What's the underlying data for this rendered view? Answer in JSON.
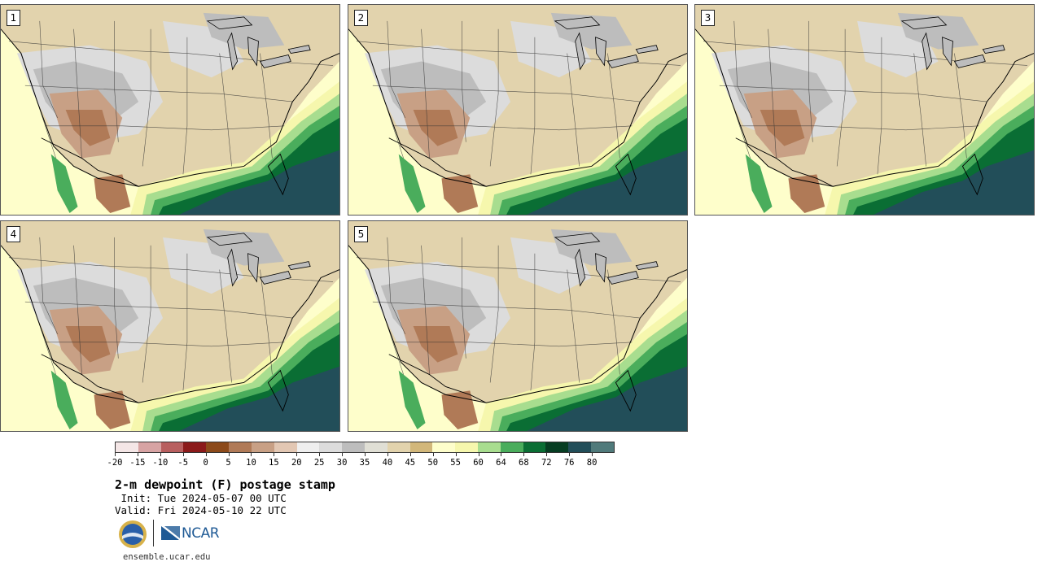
{
  "stamps": [
    {
      "label": "1"
    },
    {
      "label": "2"
    },
    {
      "label": "3"
    },
    {
      "label": "4"
    },
    {
      "label": "5"
    }
  ],
  "colorbar": {
    "ticks": [
      "-20",
      "-15",
      "-10",
      "-5",
      "0",
      "5",
      "10",
      "15",
      "20",
      "25",
      "30",
      "35",
      "40",
      "45",
      "50",
      "55",
      "60",
      "64",
      "68",
      "72",
      "76",
      "80"
    ],
    "colors": [
      "#f4e6e6",
      "#d7a3a3",
      "#b85f5f",
      "#8b1a1a",
      "#8c4a1a",
      "#b07a57",
      "#c8a085",
      "#e2c7b3",
      "#efefef",
      "#dcdcdc",
      "#bdbdbd",
      "#e0dfd5",
      "#e2d3ad",
      "#d2b77a",
      "#fefecb",
      "#f6f7ad",
      "#a8dd8f",
      "#4aad5c",
      "#0a6e34",
      "#063d22",
      "#224e59",
      "#507a7b"
    ]
  },
  "title": "2-m dewpoint (F) postage stamp",
  "init": " Init: Tue 2024-05-07 00 UTC",
  "valid": "Valid: Fri 2024-05-10 22 UTC",
  "logos": {
    "nsf": "NSF",
    "ncar": "NCAR"
  },
  "site": "ensemble.ucar.edu"
}
